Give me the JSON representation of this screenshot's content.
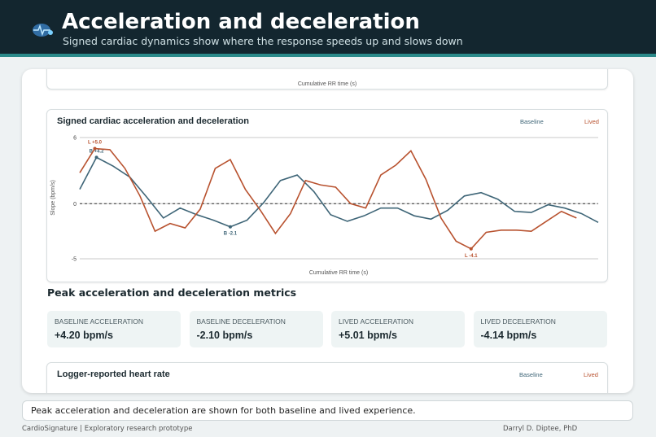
{
  "header": {
    "title": "Acceleration and deceleration",
    "subtitle": "Signed cardiac dynamics show where the response speeds up and slows down"
  },
  "top_card": {
    "x_label": "Cumulative RR time (s)"
  },
  "chart_data": {
    "type": "line",
    "title": "Signed cardiac acceleration and deceleration",
    "x_label": "Cumulative RR time (s)",
    "y_label": "Slope (bpm/s)",
    "xlim": [
      0,
      31
    ],
    "ylim": [
      -5,
      6
    ],
    "yticks": [
      6,
      0,
      -5
    ],
    "grid": true,
    "series": [
      {
        "name": "Baseline",
        "color": "#3e6577",
        "x": [
          0,
          1,
          2,
          3,
          4,
          5,
          6,
          7,
          8,
          9,
          10,
          11,
          12,
          13,
          14,
          15,
          16,
          17,
          18,
          19,
          20,
          21,
          22,
          23,
          24,
          25,
          26,
          27,
          28,
          29,
          30,
          31
        ],
        "values": [
          1.3,
          4.2,
          3.4,
          2.4,
          0.6,
          -1.3,
          -0.4,
          -1.0,
          -1.5,
          -2.1,
          -1.5,
          0.1,
          2.1,
          2.6,
          1.1,
          -1.0,
          -1.6,
          -1.1,
          -0.4,
          -0.4,
          -1.1,
          -1.4,
          -0.6,
          0.7,
          1.0,
          0.4,
          -0.7,
          -0.8,
          -0.1,
          -0.4,
          -0.9,
          -1.7
        ]
      },
      {
        "name": "Lived",
        "color": "#b8522f",
        "x": [
          0,
          0.9,
          1.8,
          2.7,
          3.6,
          4.5,
          5.4,
          6.3,
          7.2,
          8.1,
          9,
          9.9,
          10.8,
          11.7,
          12.6,
          13.5,
          14.4,
          15.3,
          16.2,
          17.1,
          18,
          18.9,
          19.8,
          20.7,
          21.6,
          22.5,
          23.4,
          24.3,
          25.2,
          26.1,
          27,
          27.9,
          28.8,
          29.7
        ],
        "values": [
          2.8,
          5.0,
          4.9,
          3.2,
          0.7,
          -2.5,
          -1.8,
          -2.2,
          -0.5,
          3.2,
          4.0,
          1.3,
          -0.6,
          -2.7,
          -0.9,
          2.1,
          1.7,
          1.5,
          0,
          -0.4,
          2.6,
          3.5,
          4.8,
          2.2,
          -1.3,
          -3.4,
          -4.1,
          -2.6,
          -2.4,
          -2.4,
          -2.5,
          -1.6,
          -0.7,
          -1.3
        ]
      }
    ],
    "annotations": [
      "B +4.2",
      "B -2.1",
      "L +5.0",
      "L -4.1"
    ]
  },
  "metrics_title": "Peak acceleration and deceleration metrics",
  "metrics": [
    {
      "label": "BASELINE ACCELERATION",
      "value": "+4.20 bpm/s"
    },
    {
      "label": "BASELINE DECELERATION",
      "value": "-2.10 bpm/s"
    },
    {
      "label": "LIVED ACCELERATION",
      "value": "+5.01 bpm/s"
    },
    {
      "label": "LIVED DECELERATION",
      "value": "-4.14 bpm/s"
    }
  ],
  "bottom_card": {
    "title": "Logger-reported heart rate",
    "legend": [
      "Baseline",
      "Lived"
    ]
  },
  "caption": "Peak acceleration and deceleration are shown for both baseline and lived experience.",
  "footer": {
    "left": "CardioSignature | Exploratory research prototype",
    "right": "Darryl D. Diptee, PhD"
  }
}
